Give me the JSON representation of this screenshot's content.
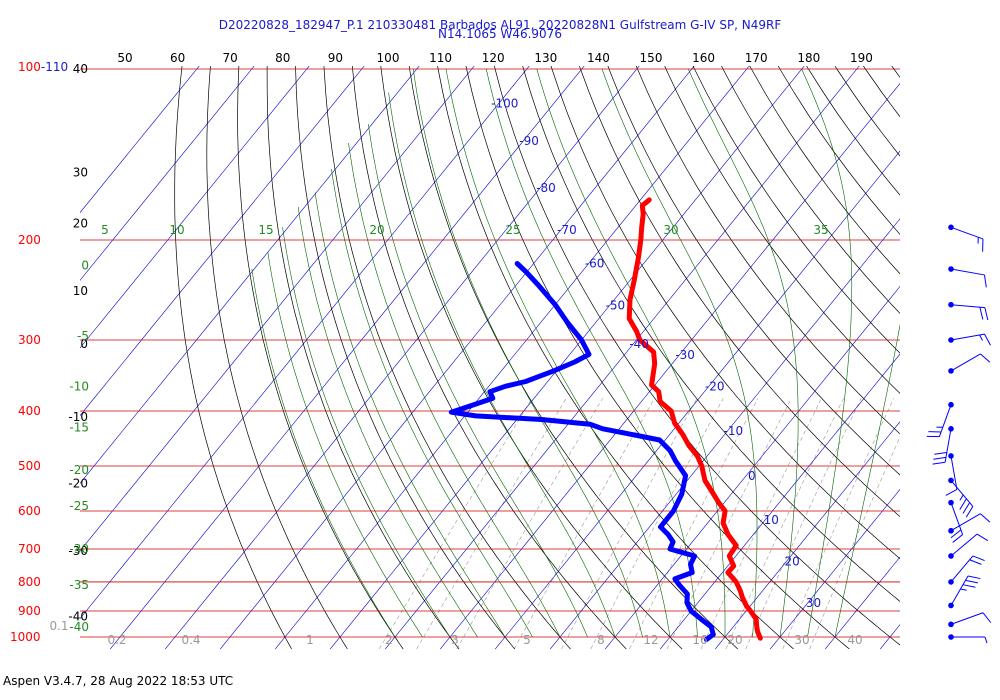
{
  "title": {
    "line1": "D20220828_182947_P.1 210330481 Barbados AL91, 20220828N1 Gulfstream G-IV SP, N49RF",
    "line2": "N14.1065 W46.9076"
  },
  "footer": "Aspen V3.4.7, 28 Aug 2022  18:53 UTC",
  "colors": {
    "temperature": "#ff0000",
    "dewpoint": "#0000ff",
    "isobar": "#cc0000",
    "isotherm": "#0000cc",
    "dry_adiabat": "#000000",
    "moist_adiabat": "#006600",
    "mixing_ratio": "#999999",
    "pressure_label": "#ff0000",
    "temp_label": "#1a1acc",
    "moist_label": "#228b22",
    "theta_label": "#000000",
    "mixing_label": "#999999"
  },
  "chart_data": {
    "type": "line",
    "diagram": "skew-T",
    "pressure_levels": [
      "100",
      "200",
      "300",
      "400",
      "500",
      "600",
      "700",
      "800",
      "900",
      "1000"
    ],
    "pressure_prefix": "100",
    "pressure_suffix": "-110",
    "theta_top_labels": [
      "50",
      "60",
      "70",
      "80",
      "90",
      "100",
      "110",
      "120",
      "130",
      "140",
      "150",
      "160",
      "170",
      "180",
      "190"
    ],
    "theta_left_labels": [
      {
        "text": "40",
        "p": 100
      },
      {
        "text": "30",
        "p": 152
      },
      {
        "text": "20",
        "p": 187
      },
      {
        "text": "10",
        "p": 246
      },
      {
        "text": "0",
        "p": 305
      },
      {
        "text": "-10",
        "p": 410
      },
      {
        "text": "-20",
        "p": 537
      },
      {
        "text": "-30",
        "p": 705
      },
      {
        "text": "-40",
        "p": 920
      }
    ],
    "isotherm_labels": [
      {
        "text": "-100",
        "p": 115
      },
      {
        "text": "-90",
        "p": 134
      },
      {
        "text": "-80",
        "p": 162
      },
      {
        "text": "-70",
        "p": 192
      },
      {
        "text": "-60",
        "p": 220
      },
      {
        "text": "-50",
        "p": 261
      },
      {
        "text": "-40",
        "p": 305
      },
      {
        "text": "-30",
        "p": 319
      },
      {
        "text": "-20",
        "p": 362
      },
      {
        "text": "-10",
        "p": 434
      },
      {
        "text": "0",
        "p": 521
      },
      {
        "text": "10",
        "p": 622
      },
      {
        "text": "20",
        "p": 737
      },
      {
        "text": "30",
        "p": 872
      }
    ],
    "moist_top_labels": [
      "5",
      "10",
      "15",
      "20",
      "25",
      "30",
      "35"
    ],
    "moist_left_labels": [
      {
        "text": "0",
        "p": 222
      },
      {
        "text": "-5",
        "p": 295
      },
      {
        "text": "-10",
        "p": 362
      },
      {
        "text": "-15",
        "p": 428
      },
      {
        "text": "-20",
        "p": 508
      },
      {
        "text": "-25",
        "p": 588
      },
      {
        "text": "-30",
        "p": 700
      },
      {
        "text": "-35",
        "p": 810
      },
      {
        "text": "-40",
        "p": 960
      }
    ],
    "mixing_labels": [
      "0.1",
      "0.2",
      "0.4",
      "1",
      "2",
      "3",
      "5",
      "8",
      "12",
      "16",
      "20",
      "30",
      "40"
    ],
    "temperature": [
      {
        "p": 170,
        "t": -58.4
      },
      {
        "p": 174,
        "t": -58.8
      },
      {
        "p": 180,
        "t": -57.4
      },
      {
        "p": 190,
        "t": -55.7
      },
      {
        "p": 200,
        "t": -54.0
      },
      {
        "p": 215,
        "t": -51.8
      },
      {
        "p": 235,
        "t": -49.3
      },
      {
        "p": 255,
        "t": -47.1
      },
      {
        "p": 275,
        "t": -44.5
      },
      {
        "p": 290,
        "t": -41.2
      },
      {
        "p": 300,
        "t": -39.4
      },
      {
        "p": 315,
        "t": -35.1
      },
      {
        "p": 330,
        "t": -33.2
      },
      {
        "p": 360,
        "t": -30.6
      },
      {
        "p": 370,
        "t": -28.3
      },
      {
        "p": 385,
        "t": -26.6
      },
      {
        "p": 400,
        "t": -23.2
      },
      {
        "p": 420,
        "t": -20.8
      },
      {
        "p": 440,
        "t": -17.6
      },
      {
        "p": 460,
        "t": -14.9
      },
      {
        "p": 480,
        "t": -11.8
      },
      {
        "p": 500,
        "t": -9.5
      },
      {
        "p": 530,
        "t": -6.8
      },
      {
        "p": 550,
        "t": -4.4
      },
      {
        "p": 580,
        "t": -1.0
      },
      {
        "p": 600,
        "t": 1.4
      },
      {
        "p": 630,
        "t": 2.8
      },
      {
        "p": 660,
        "t": 5.4
      },
      {
        "p": 690,
        "t": 8.5
      },
      {
        "p": 720,
        "t": 8.8
      },
      {
        "p": 750,
        "t": 11.1
      },
      {
        "p": 770,
        "t": 11.0
      },
      {
        "p": 800,
        "t": 13.9
      },
      {
        "p": 830,
        "t": 16.0
      },
      {
        "p": 850,
        "t": 17.2
      },
      {
        "p": 880,
        "t": 19.2
      },
      {
        "p": 900,
        "t": 20.8
      },
      {
        "p": 930,
        "t": 23.0
      },
      {
        "p": 960,
        "t": 24.3
      },
      {
        "p": 980,
        "t": 25.2
      },
      {
        "p": 1005,
        "t": 26.6
      }
    ],
    "dewpoint": [
      {
        "p": 220,
        "t": -73.0
      },
      {
        "p": 228,
        "t": -70.0
      },
      {
        "p": 240,
        "t": -66.0
      },
      {
        "p": 260,
        "t": -60.0
      },
      {
        "p": 280,
        "t": -55.0
      },
      {
        "p": 300,
        "t": -50.0
      },
      {
        "p": 318,
        "t": -46.5
      },
      {
        "p": 328,
        "t": -48.0
      },
      {
        "p": 340,
        "t": -50.5
      },
      {
        "p": 355,
        "t": -54.0
      },
      {
        "p": 362,
        "t": -57.0
      },
      {
        "p": 370,
        "t": -59.0
      },
      {
        "p": 380,
        "t": -57.5
      },
      {
        "p": 390,
        "t": -60.0
      },
      {
        "p": 402,
        "t": -63.0
      },
      {
        "p": 408,
        "t": -58.0
      },
      {
        "p": 414,
        "t": -45.5
      },
      {
        "p": 422,
        "t": -36.0
      },
      {
        "p": 430,
        "t": -33.0
      },
      {
        "p": 438,
        "t": -28.0
      },
      {
        "p": 450,
        "t": -21.0
      },
      {
        "p": 470,
        "t": -17.5
      },
      {
        "p": 490,
        "t": -15.0
      },
      {
        "p": 520,
        "t": -11.0
      },
      {
        "p": 560,
        "t": -9.0
      },
      {
        "p": 600,
        "t": -8.0
      },
      {
        "p": 640,
        "t": -8.0
      },
      {
        "p": 660,
        "t": -5.5
      },
      {
        "p": 680,
        "t": -3.5
      },
      {
        "p": 700,
        "t": -3.0
      },
      {
        "p": 720,
        "t": 2.5
      },
      {
        "p": 745,
        "t": 3.0
      },
      {
        "p": 770,
        "t": 4.5
      },
      {
        "p": 790,
        "t": 2.3
      },
      {
        "p": 810,
        "t": 4.0
      },
      {
        "p": 840,
        "t": 6.8
      },
      {
        "p": 870,
        "t": 8.0
      },
      {
        "p": 900,
        "t": 10.0
      },
      {
        "p": 930,
        "t": 13.0
      },
      {
        "p": 960,
        "t": 16.0
      },
      {
        "p": 990,
        "t": 17.5
      },
      {
        "p": 1010,
        "t": 17.0
      }
    ],
    "wind_barbs": [
      {
        "p": 190,
        "dir": 110,
        "spd": 15
      },
      {
        "p": 225,
        "dir": 100,
        "spd": 10
      },
      {
        "p": 260,
        "dir": 95,
        "spd": 20
      },
      {
        "p": 300,
        "dir": 80,
        "spd": 15
      },
      {
        "p": 340,
        "dir": 60,
        "spd": 10
      },
      {
        "p": 390,
        "dir": 200,
        "spd": 25
      },
      {
        "p": 430,
        "dir": 190,
        "spd": 30
      },
      {
        "p": 480,
        "dir": 170,
        "spd": 10
      },
      {
        "p": 530,
        "dir": 140,
        "spd": 35
      },
      {
        "p": 580,
        "dir": 160,
        "spd": 20
      },
      {
        "p": 650,
        "dir": 60,
        "spd": 10
      },
      {
        "p": 720,
        "dir": 50,
        "spd": 10
      },
      {
        "p": 800,
        "dir": 40,
        "spd": 20
      },
      {
        "p": 880,
        "dir": 30,
        "spd": 35
      },
      {
        "p": 950,
        "dir": 70,
        "spd": 10
      },
      {
        "p": 1000,
        "dir": 90,
        "spd": 5
      }
    ]
  }
}
